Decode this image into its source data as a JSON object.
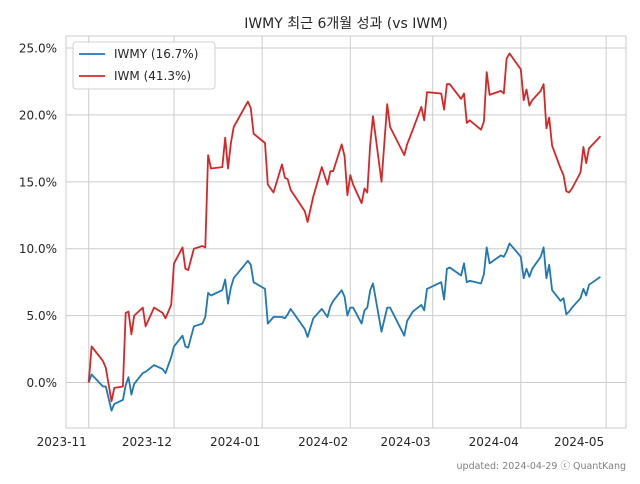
{
  "chart_data": {
    "type": "line",
    "title": "IWMY 최근 6개월 성과 (vs IWM)",
    "xlabel": "",
    "ylabel": "",
    "xlim": [
      "2023-10-24",
      "2024-05-08"
    ],
    "ylim": [
      -3.4,
      25.9
    ],
    "grid": true,
    "legend_position": "top-left",
    "x_ticks": [
      {
        "date": "2023-11-01",
        "label": "2023-11"
      },
      {
        "date": "2023-12-01",
        "label": "2023-12"
      },
      {
        "date": "2024-01-01",
        "label": "2024-01"
      },
      {
        "date": "2024-02-01",
        "label": "2024-02"
      },
      {
        "date": "2024-03-01",
        "label": "2024-03"
      },
      {
        "date": "2024-04-01",
        "label": "2024-04"
      },
      {
        "date": "2024-05-01",
        "label": "2024-05"
      }
    ],
    "y_ticks": [
      {
        "value": 0,
        "label": "0.0%"
      },
      {
        "value": 5,
        "label": "5.0%"
      },
      {
        "value": 10,
        "label": "10.0%"
      },
      {
        "value": 15,
        "label": "15.0%"
      },
      {
        "value": 20,
        "label": "20.0%"
      },
      {
        "value": 25,
        "label": "25.0%"
      }
    ],
    "x": [
      "2023-11-01",
      "2023-11-02",
      "2023-11-06",
      "2023-11-07",
      "2023-11-09",
      "2023-11-10",
      "2023-11-13",
      "2023-11-14",
      "2023-11-15",
      "2023-11-16",
      "2023-11-17",
      "2023-11-20",
      "2023-11-21",
      "2023-11-24",
      "2023-11-27",
      "2023-11-28",
      "2023-11-30",
      "2023-12-01",
      "2023-12-04",
      "2023-12-05",
      "2023-12-06",
      "2023-12-08",
      "2023-12-11",
      "2023-12-12",
      "2023-12-13",
      "2023-12-14",
      "2023-12-18",
      "2023-12-19",
      "2023-12-20",
      "2023-12-21",
      "2023-12-22",
      "2023-12-27",
      "2023-12-28",
      "2023-12-29",
      "2024-01-02",
      "2024-01-03",
      "2024-01-05",
      "2024-01-08",
      "2024-01-09",
      "2024-01-10",
      "2024-01-11",
      "2024-01-16",
      "2024-01-17",
      "2024-01-19",
      "2024-01-22",
      "2024-01-24",
      "2024-01-25",
      "2024-01-26",
      "2024-01-29",
      "2024-01-30",
      "2024-01-31",
      "2024-02-01",
      "2024-02-02",
      "2024-02-05",
      "2024-02-06",
      "2024-02-07",
      "2024-02-08",
      "2024-02-09",
      "2024-02-12",
      "2024-02-14",
      "2024-02-15",
      "2024-02-20",
      "2024-02-21",
      "2024-02-23",
      "2024-02-26",
      "2024-02-27",
      "2024-02-28",
      "2024-03-04",
      "2024-03-05",
      "2024-03-06",
      "2024-03-07",
      "2024-03-11",
      "2024-03-12",
      "2024-03-13",
      "2024-03-14",
      "2024-03-18",
      "2024-03-19",
      "2024-03-20",
      "2024-03-21",
      "2024-03-25",
      "2024-03-26",
      "2024-03-27",
      "2024-03-28",
      "2024-04-01",
      "2024-04-02",
      "2024-04-03",
      "2024-04-04",
      "2024-04-05",
      "2024-04-08",
      "2024-04-09",
      "2024-04-10",
      "2024-04-11",
      "2024-04-12",
      "2024-04-15",
      "2024-04-16",
      "2024-04-17",
      "2024-04-18",
      "2024-04-19",
      "2024-04-22",
      "2024-04-23",
      "2024-04-24",
      "2024-04-25",
      "2024-04-29"
    ],
    "series": [
      {
        "name": "IWMY (16.7%)",
        "color": "#1f77b4",
        "values": [
          0,
          0.6,
          -0.3,
          -0.3,
          -2.1,
          -1.6,
          -1.3,
          -0.2,
          0.4,
          -0.9,
          -0.1,
          0.7,
          0.8,
          1.3,
          1.0,
          0.7,
          1.9,
          2.7,
          3.5,
          2.7,
          2.6,
          4.2,
          4.4,
          4.9,
          6.7,
          6.5,
          6.9,
          7.7,
          5.9,
          7.1,
          7.8,
          9.1,
          8.8,
          7.5,
          7.0,
          4.4,
          4.9,
          4.9,
          4.8,
          5.1,
          5.5,
          4.0,
          3.4,
          4.8,
          5.5,
          4.9,
          5.7,
          6.1,
          6.9,
          6.4,
          5.0,
          5.6,
          5.6,
          4.4,
          5.4,
          5.6,
          6.9,
          7.4,
          3.8,
          5.6,
          5.6,
          3.5,
          4.6,
          5.3,
          5.8,
          5.4,
          7.0,
          7.5,
          6.2,
          8.5,
          8.6,
          8.0,
          8.9,
          7.5,
          7.6,
          7.4,
          8.1,
          10.1,
          8.9,
          9.5,
          9.4,
          9.8,
          10.4,
          9.4,
          7.8,
          8.5,
          7.9,
          8.5,
          9.4,
          10.1,
          7.8,
          8.8,
          6.9,
          6.1,
          6.3,
          5.1,
          5.3,
          5.6,
          6.3,
          7.0,
          6.5,
          7.3,
          7.9
        ]
      },
      {
        "name": "IWM (41.3%)",
        "color": "#d62728",
        "values": [
          0,
          2.7,
          1.6,
          1.1,
          -1.4,
          -0.4,
          -0.3,
          5.2,
          5.3,
          3.6,
          5.0,
          5.6,
          4.2,
          5.6,
          5.2,
          4.8,
          5.8,
          8.9,
          10.1,
          8.5,
          8.4,
          10.0,
          10.2,
          10.1,
          17.0,
          16.0,
          16.1,
          18.3,
          16.0,
          17.9,
          19.1,
          21.0,
          20.5,
          18.6,
          17.9,
          14.8,
          14.2,
          16.3,
          15.3,
          15.2,
          14.4,
          12.8,
          12.0,
          13.9,
          16.1,
          14.8,
          15.8,
          15.8,
          17.8,
          16.9,
          14.0,
          15.5,
          14.8,
          13.4,
          14.5,
          14.2,
          17.8,
          19.9,
          15.0,
          20.8,
          19.1,
          17.0,
          17.8,
          18.9,
          20.6,
          19.6,
          21.7,
          21.6,
          20.4,
          22.3,
          22.3,
          21.2,
          21.6,
          19.4,
          19.6,
          18.9,
          19.5,
          23.2,
          21.5,
          21.8,
          21.6,
          24.2,
          24.6,
          23.4,
          21.1,
          21.9,
          20.7,
          21.1,
          21.8,
          22.3,
          19.0,
          19.8,
          17.7,
          16.0,
          15.5,
          14.3,
          14.2,
          14.5,
          15.7,
          17.6,
          16.4,
          17.5,
          18.4
        ]
      }
    ]
  },
  "footer": {
    "text": "updated: 2024-04-29 ⓒ QuantKang"
  }
}
